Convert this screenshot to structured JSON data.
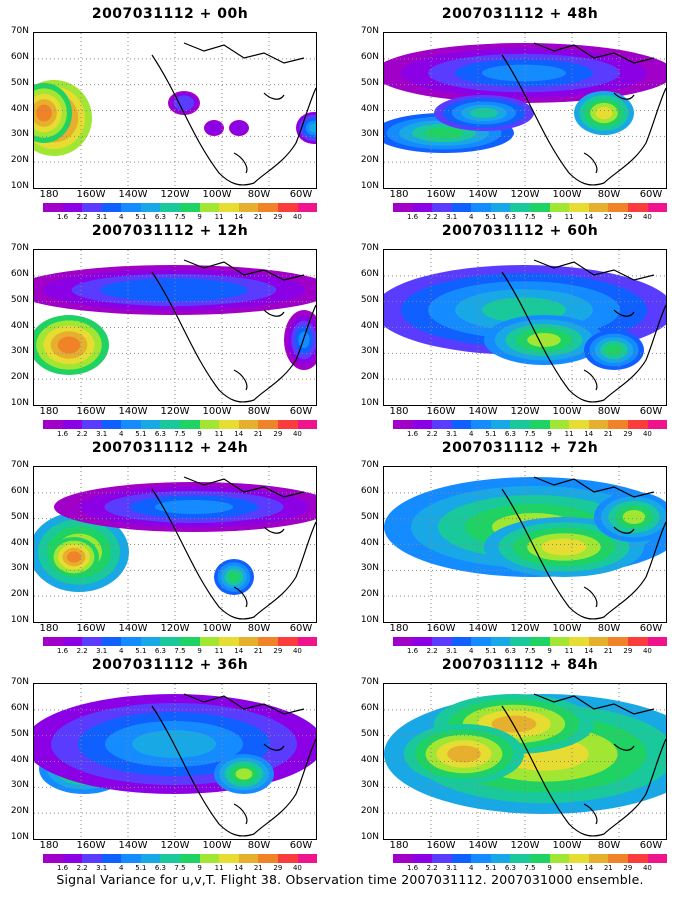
{
  "panels": [
    {
      "title": "2007031112 + 00h"
    },
    {
      "title": "2007031112 + 48h"
    },
    {
      "title": "2007031112 + 12h"
    },
    {
      "title": "2007031112 + 60h"
    },
    {
      "title": "2007031112 + 24h"
    },
    {
      "title": "2007031112 + 72h"
    },
    {
      "title": "2007031112 + 36h"
    },
    {
      "title": "2007031112 + 84h"
    }
  ],
  "lat_labels": [
    "70N",
    "60N",
    "50N",
    "40N",
    "30N",
    "20N",
    "10N"
  ],
  "lon_labels": [
    "180",
    "160W",
    "140W",
    "120W",
    "100W",
    "80W",
    "60W"
  ],
  "colorbar": {
    "colors": [
      "#a000c8",
      "#8c00e6",
      "#5a3cff",
      "#0f60ff",
      "#148cff",
      "#18a8e6",
      "#19c89b",
      "#1fd264",
      "#a0e632",
      "#e6dc32",
      "#e6af2d",
      "#f08228",
      "#fa3c3c",
      "#f0148c"
    ],
    "labels": [
      "1.6",
      "2.2",
      "3.1",
      "4",
      "5.1",
      "6.3",
      "7.5",
      "9",
      "11",
      "14",
      "21",
      "29",
      "40"
    ]
  },
  "caption": "Signal Variance for u,v,T. Flight 38. Observation time 2007031112. 2007031000 ensemble."
}
